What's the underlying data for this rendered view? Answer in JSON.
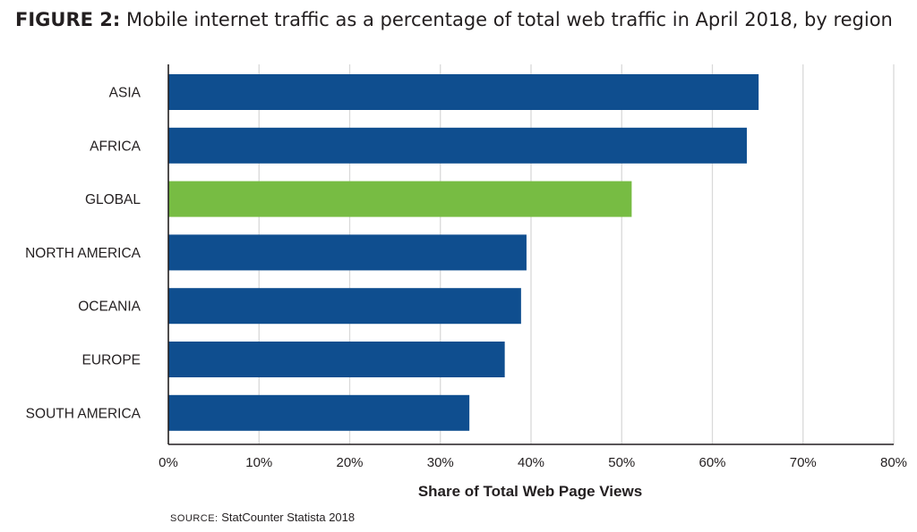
{
  "figure": {
    "label": "FIGURE 2:",
    "title": "Mobile internet traffic as a percentage of total web traffic in April 2018, by region"
  },
  "source": {
    "label": "SOURCE:",
    "text": "StatCounter Statista 2018"
  },
  "colors": {
    "bar": "#0f4e8f",
    "highlight": "#77bc43",
    "grid": "#d9d9d9",
    "axis": "#231f20"
  },
  "chart_data": {
    "type": "bar",
    "orientation": "horizontal",
    "categories": [
      "ASIA",
      "AFRICA",
      "GLOBAL",
      "NORTH AMERICA",
      "OCEANIA",
      "EUROPE",
      "SOUTH AMERICA"
    ],
    "values": [
      65.1,
      63.8,
      51.1,
      39.5,
      38.9,
      37.1,
      33.2
    ],
    "highlight_category": "GLOBAL",
    "xlabel": "Share of Total Web Page Views",
    "xticks": [
      "0%",
      "10%",
      "20%",
      "30%",
      "40%",
      "50%",
      "60%",
      "70%",
      "80%"
    ],
    "xlim": [
      0,
      80
    ],
    "grid": true
  }
}
